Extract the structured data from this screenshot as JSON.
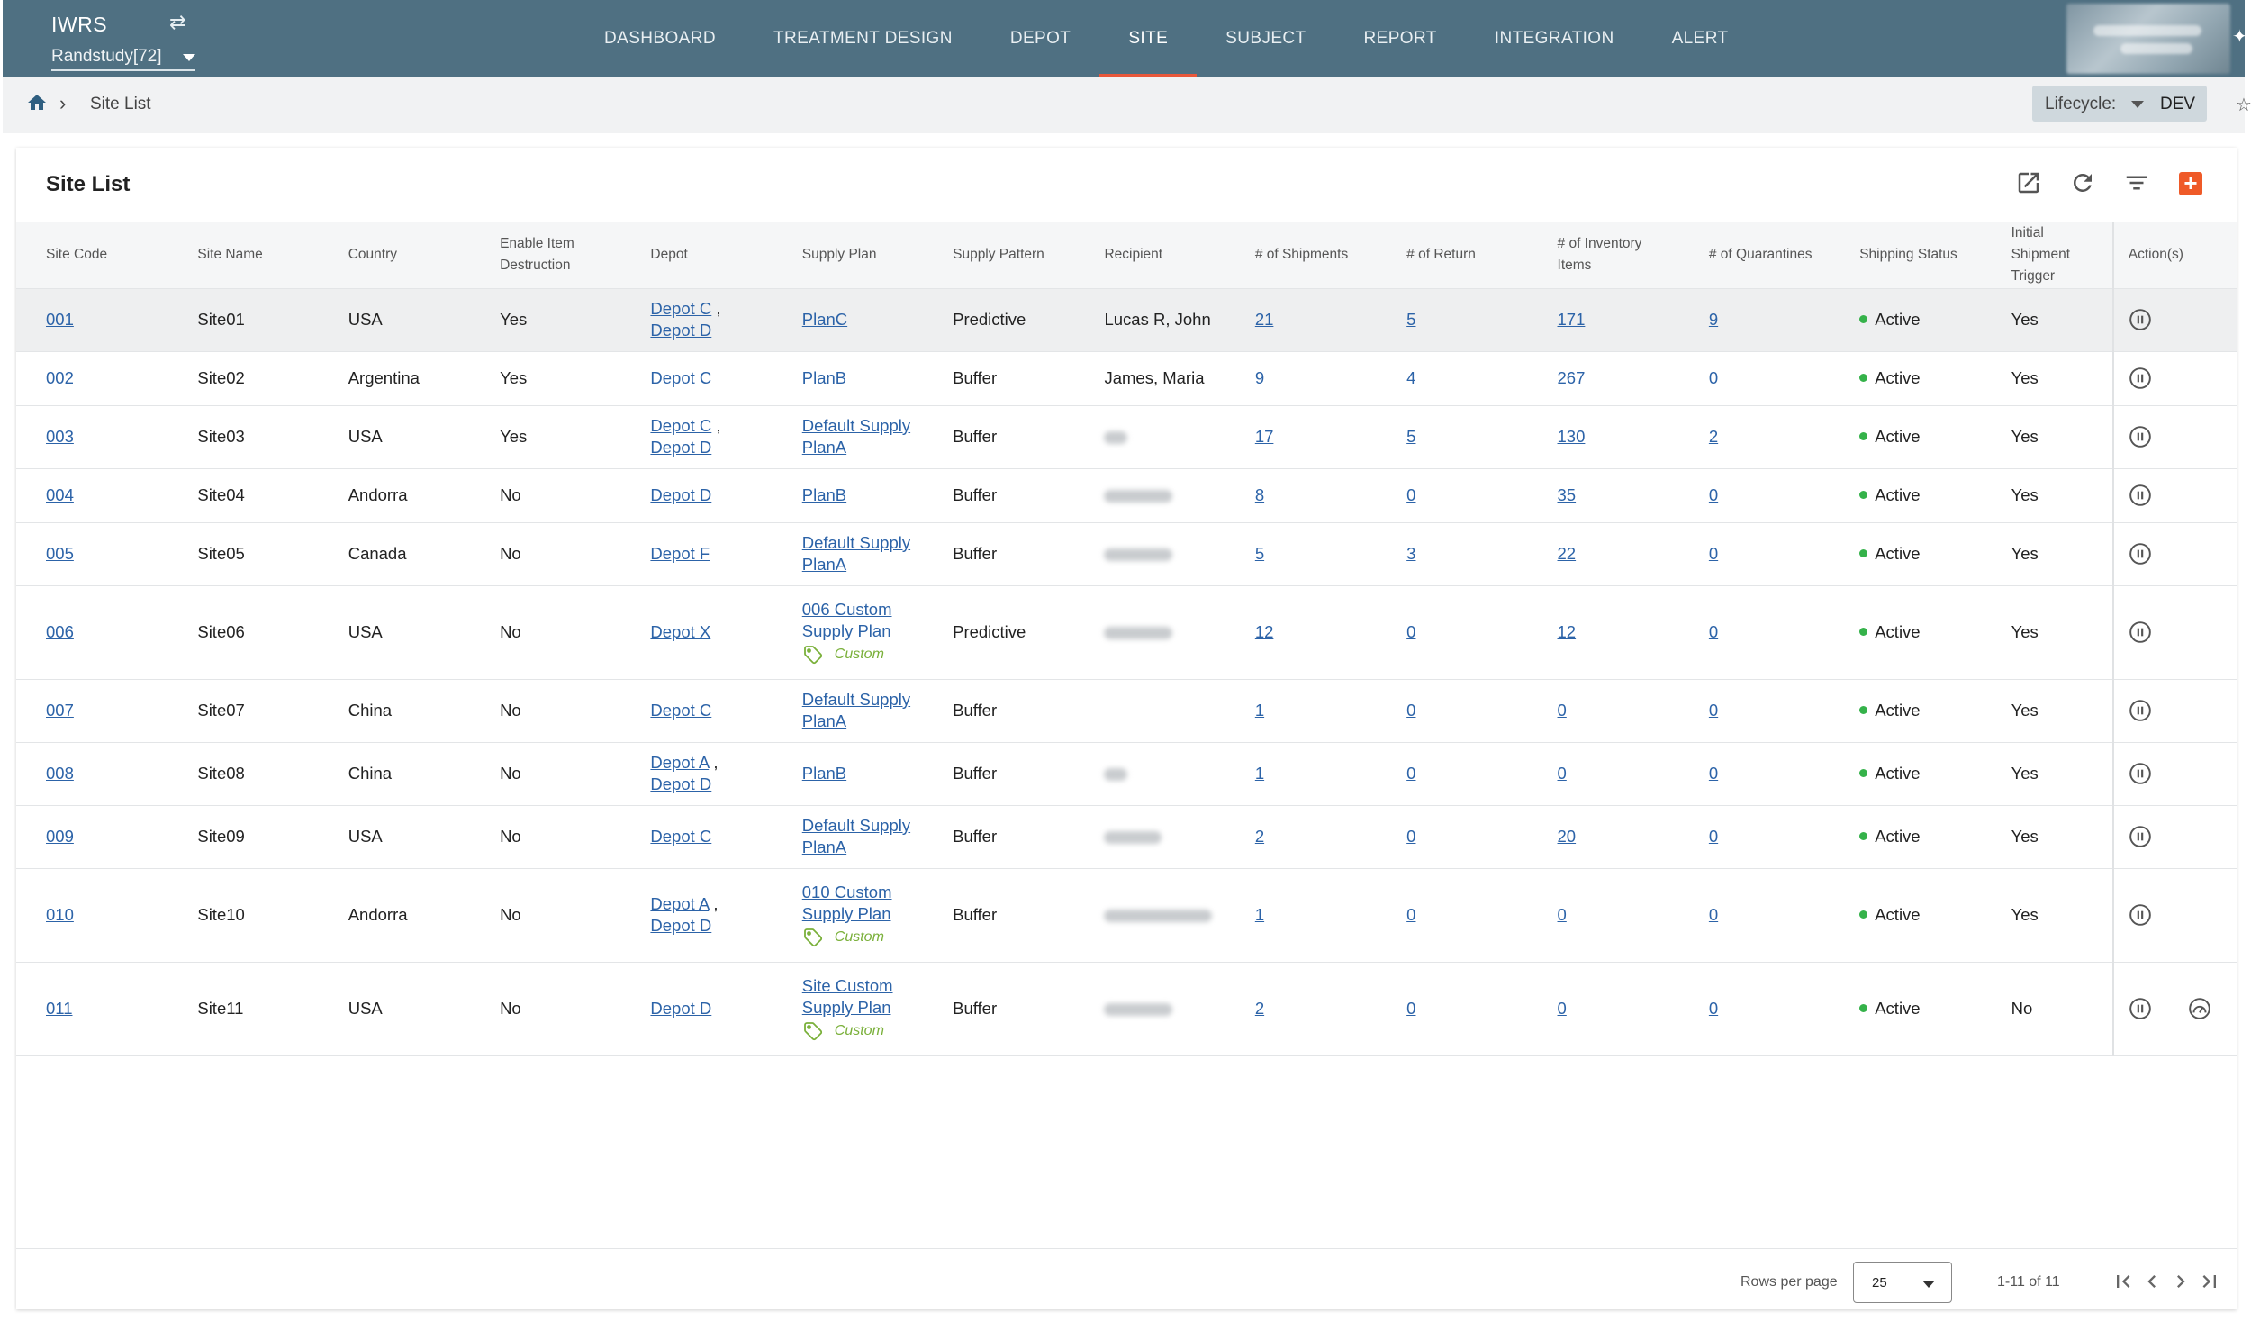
{
  "header": {
    "app_name": "IWRS",
    "study": "Randstudy[72]",
    "nav": [
      {
        "label": "DASHBOARD",
        "active": false
      },
      {
        "label": "TREATMENT DESIGN",
        "active": false
      },
      {
        "label": "DEPOT",
        "active": false
      },
      {
        "label": "SITE",
        "active": true
      },
      {
        "label": "SUBJECT",
        "active": false
      },
      {
        "label": "REPORT",
        "active": false
      },
      {
        "label": "INTEGRATION",
        "active": false
      },
      {
        "label": "ALERT",
        "active": false
      }
    ],
    "accent_color": "#e8573a",
    "bar_color": "#4f7082"
  },
  "breadcrumb": {
    "current": "Site List",
    "lifecycle_label": "Lifecycle:",
    "lifecycle_value": "DEV"
  },
  "card": {
    "title": "Site List",
    "add_label": "+"
  },
  "table": {
    "columns": [
      "Site Code",
      "Site Name",
      "Country",
      "Enable Item Destruction",
      "Depot",
      "Supply Plan",
      "Supply Pattern",
      "Recipient",
      "# of Shipments",
      "# of Return",
      "# of Inventory Items",
      "# of Quarantines",
      "Shipping Status",
      "Initial Shipment Trigger",
      "Action(s)"
    ],
    "rows": [
      {
        "code": "001",
        "name": "Site01",
        "country": "USA",
        "destruction": "Yes",
        "depots": [
          "Depot C",
          "Depot D"
        ],
        "plan": "PlanC",
        "custom": false,
        "pattern": "Predictive",
        "recipient": "Lucas R, John",
        "shipments": "21",
        "returns": "5",
        "inventory": "171",
        "quarantines": "9",
        "status": "Active",
        "trigger": "Yes",
        "highlighted": true
      },
      {
        "code": "002",
        "name": "Site02",
        "country": "Argentina",
        "destruction": "Yes",
        "depots": [
          "Depot C"
        ],
        "plan": "PlanB",
        "custom": false,
        "pattern": "Buffer",
        "recipient": "James, Maria",
        "shipments": "9",
        "returns": "4",
        "inventory": "267",
        "quarantines": "0",
        "status": "Active",
        "trigger": "Yes"
      },
      {
        "code": "003",
        "name": "Site03",
        "country": "USA",
        "destruction": "Yes",
        "depots": [
          "Depot C",
          "Depot D"
        ],
        "plan": "Default Supply PlanA",
        "custom": false,
        "pattern": "Buffer",
        "recipient": "",
        "shipments": "17",
        "returns": "5",
        "inventory": "130",
        "quarantines": "2",
        "status": "Active",
        "trigger": "Yes"
      },
      {
        "code": "004",
        "name": "Site04",
        "country": "Andorra",
        "destruction": "No",
        "depots": [
          "Depot D"
        ],
        "plan": "PlanB",
        "custom": false,
        "pattern": "Buffer",
        "recipient": "",
        "shipments": "8",
        "returns": "0",
        "inventory": "35",
        "quarantines": "0",
        "status": "Active",
        "trigger": "Yes"
      },
      {
        "code": "005",
        "name": "Site05",
        "country": "Canada",
        "destruction": "No",
        "depots": [
          "Depot F"
        ],
        "plan": "Default Supply PlanA",
        "custom": false,
        "pattern": "Buffer",
        "recipient": "",
        "shipments": "5",
        "returns": "3",
        "inventory": "22",
        "quarantines": "0",
        "status": "Active",
        "trigger": "Yes"
      },
      {
        "code": "006",
        "name": "Site06",
        "country": "USA",
        "destruction": "No",
        "depots": [
          "Depot X"
        ],
        "plan": "006 Custom Supply Plan",
        "custom": true,
        "pattern": "Predictive",
        "recipient": "",
        "shipments": "12",
        "returns": "0",
        "inventory": "12",
        "quarantines": "0",
        "status": "Active",
        "trigger": "Yes"
      },
      {
        "code": "007",
        "name": "Site07",
        "country": "China",
        "destruction": "No",
        "depots": [
          "Depot C"
        ],
        "plan": "Default Supply PlanA",
        "custom": false,
        "pattern": "Buffer",
        "recipient": "",
        "shipments": "1",
        "returns": "0",
        "inventory": "0",
        "quarantines": "0",
        "status": "Active",
        "trigger": "Yes"
      },
      {
        "code": "008",
        "name": "Site08",
        "country": "China",
        "destruction": "No",
        "depots": [
          "Depot A",
          "Depot D"
        ],
        "plan": "PlanB",
        "custom": false,
        "pattern": "Buffer",
        "recipient": "",
        "shipments": "1",
        "returns": "0",
        "inventory": "0",
        "quarantines": "0",
        "status": "Active",
        "trigger": "Yes"
      },
      {
        "code": "009",
        "name": "Site09",
        "country": "USA",
        "destruction": "No",
        "depots": [
          "Depot C"
        ],
        "plan": "Default Supply PlanA",
        "custom": false,
        "pattern": "Buffer",
        "recipient": "",
        "shipments": "2",
        "returns": "0",
        "inventory": "20",
        "quarantines": "0",
        "status": "Active",
        "trigger": "Yes"
      },
      {
        "code": "010",
        "name": "Site10",
        "country": "Andorra",
        "destruction": "No",
        "depots": [
          "Depot A",
          "Depot D"
        ],
        "plan": "010 Custom Supply Plan",
        "custom": true,
        "pattern": "Buffer",
        "recipient": "",
        "shipments": "1",
        "returns": "0",
        "inventory": "0",
        "quarantines": "0",
        "status": "Active",
        "trigger": "Yes"
      },
      {
        "code": "011",
        "name": "Site11",
        "country": "USA",
        "destruction": "No",
        "depots": [
          "Depot D"
        ],
        "plan": "Site Custom Supply Plan",
        "custom": true,
        "pattern": "Buffer",
        "recipient": "",
        "shipments": "2",
        "returns": "0",
        "inventory": "0",
        "quarantines": "0",
        "status": "Active",
        "trigger": "No",
        "extra_action": true
      }
    ],
    "custom_label": "Custom",
    "status_color": "#35b24a",
    "link_color": "#2c63a8"
  },
  "footer": {
    "rows_per_page_label": "Rows per page",
    "rows_per_page": "25",
    "range": "1-11 of 11"
  },
  "icons": {
    "swap": "swap-icon",
    "home": "home-icon",
    "export": "export-icon",
    "refresh": "refresh-icon",
    "filter": "filter-icon",
    "add": "add-icon",
    "pause": "pause-icon",
    "gauge": "gauge-icon",
    "tag": "tag-icon"
  }
}
